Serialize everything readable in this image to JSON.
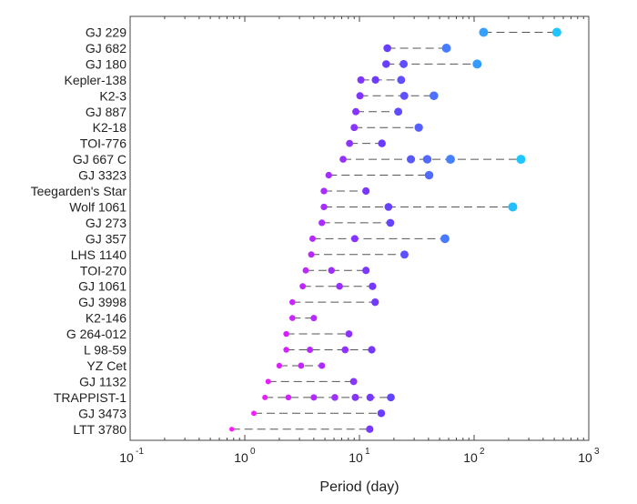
{
  "chart_data": {
    "type": "scatter",
    "title": "",
    "xlabel": "Period (day)",
    "ylabel": "",
    "xscale": "log",
    "xlim": [
      0.1,
      1000
    ],
    "xticks": [
      {
        "value": 0.1,
        "base": "10",
        "exp": "-1"
      },
      {
        "value": 1,
        "base": "10",
        "exp": "0"
      },
      {
        "value": 10,
        "base": "10",
        "exp": "1"
      },
      {
        "value": 100,
        "base": "10",
        "exp": "2"
      },
      {
        "value": 1000,
        "base": "10",
        "exp": "3"
      }
    ],
    "grid": false,
    "systems": [
      {
        "name": "GJ 229",
        "periods": [
          121.0,
          526.0
        ]
      },
      {
        "name": "GJ 682",
        "periods": [
          17.5,
          57.3
        ]
      },
      {
        "name": "GJ 180",
        "periods": [
          17.1,
          24.3,
          106.3
        ]
      },
      {
        "name": "Kepler-138",
        "periods": [
          10.3,
          13.8,
          23.1
        ]
      },
      {
        "name": "K2-3",
        "periods": [
          10.1,
          24.6,
          44.6
        ]
      },
      {
        "name": "GJ 887",
        "periods": [
          9.3,
          21.8
        ]
      },
      {
        "name": "K2-18",
        "periods": [
          9.0,
          32.9
        ]
      },
      {
        "name": "TOI-776",
        "periods": [
          8.2,
          15.7
        ]
      },
      {
        "name": "GJ 667 C",
        "periods": [
          7.2,
          28.1,
          39.0,
          62.2,
          256.2
        ]
      },
      {
        "name": "GJ 3323",
        "periods": [
          5.4,
          40.5
        ]
      },
      {
        "name": "Teegarden's Star",
        "periods": [
          4.9,
          11.4
        ]
      },
      {
        "name": "Wolf 1061",
        "periods": [
          4.9,
          17.9,
          217.2
        ]
      },
      {
        "name": "GJ 273",
        "periods": [
          4.7,
          18.6
        ]
      },
      {
        "name": "GJ 357",
        "periods": [
          3.9,
          9.1,
          55.7
        ]
      },
      {
        "name": "LHS 1140",
        "periods": [
          3.8,
          24.7
        ]
      },
      {
        "name": "TOI-270",
        "periods": [
          3.4,
          5.7,
          11.4
        ]
      },
      {
        "name": "GJ 1061",
        "periods": [
          3.2,
          6.7,
          13.0
        ]
      },
      {
        "name": "GJ 3998",
        "periods": [
          2.6,
          13.7
        ]
      },
      {
        "name": "K2-146",
        "periods": [
          2.6,
          4.0
        ]
      },
      {
        "name": "G 264-012",
        "periods": [
          2.3,
          8.1
        ]
      },
      {
        "name": "L 98-59",
        "periods": [
          2.3,
          3.7,
          7.5,
          12.8
        ]
      },
      {
        "name": "YZ Cet",
        "periods": [
          2.0,
          3.1,
          4.7
        ]
      },
      {
        "name": "GJ 1132",
        "periods": [
          1.6,
          8.9
        ]
      },
      {
        "name": "TRAPPIST-1",
        "periods": [
          1.5,
          2.4,
          4.0,
          6.1,
          9.2,
          12.4,
          18.8
        ]
      },
      {
        "name": "GJ 3473",
        "periods": [
          1.2,
          15.5
        ]
      },
      {
        "name": "LTT 3780",
        "periods": [
          0.77,
          12.3
        ]
      }
    ],
    "colors": {
      "inner": "#ff19ff",
      "mid": "#6a3bff",
      "outer": "#1fc6ff",
      "line": "#555555",
      "axis": "#444444"
    }
  }
}
